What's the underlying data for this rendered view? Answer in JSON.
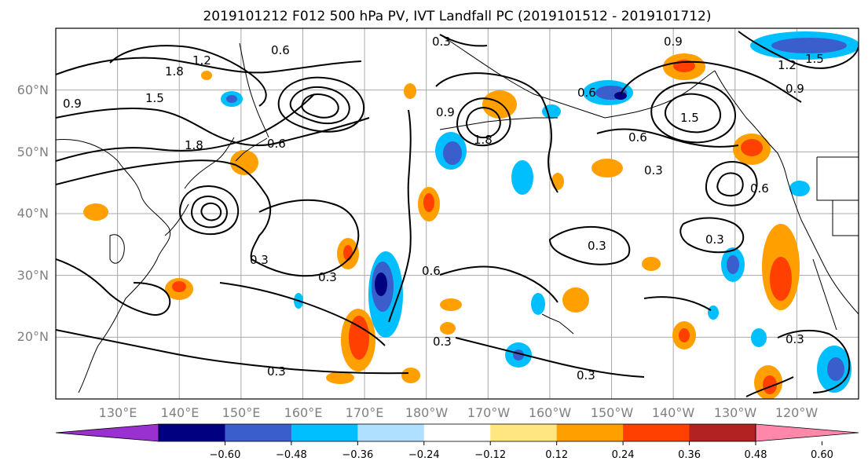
{
  "title": "2019101212 F012 500 hPa PV, IVT Landfall PC (2019101512 - 2019101712)",
  "lat_labels": [
    "60°N",
    "50°N",
    "40°N",
    "30°N",
    "20°N"
  ],
  "lon_labels": [
    "130°E",
    "140°E",
    "150°E",
    "160°E",
    "170°E",
    "180°W",
    "170°W",
    "160°W",
    "150°W",
    "140°W",
    "130°W",
    "120°W"
  ],
  "contour_labels": {
    "c1": "0.6",
    "c2": "1.2",
    "c3": "1.8",
    "c4": "1.5",
    "c5": "0.9",
    "c6": "0.3",
    "c7": "0.9",
    "c8": "1.8",
    "c9": "0.6",
    "c10": "0.9",
    "c11": "1.5",
    "c12": "1.2",
    "c13": "1.5",
    "c14": "0.9",
    "c15": "1.8",
    "c16": "0.3",
    "c17": "0.3",
    "c18": "0.6",
    "c19": "0.3",
    "c20": "0.3",
    "c21": "0.6",
    "c22": "0.3",
    "c23": "0.3",
    "c24": "0.3",
    "c25": "0.3",
    "c26": "0.3",
    "c27": "0.6",
    "c28": "0.6"
  },
  "colorbar": {
    "colors": [
      "#9b30d0",
      "#000080",
      "#3a5fcd",
      "#00bfff",
      "#b0e0ff",
      "#ffffff",
      "#ffe680",
      "#ffa000",
      "#ff4000",
      "#b22222",
      "#ff88aa"
    ],
    "tick_labels": [
      "−0.60",
      "−0.48",
      "−0.36",
      "−0.24",
      "−0.12",
      "0.12",
      "0.24",
      "0.36",
      "0.48",
      "0.60"
    ]
  },
  "chart_data": {
    "type": "heatmap",
    "title": "2019101212 F012 500 hPa PV, IVT Landfall PC (2019101512 - 2019101712)",
    "map_extent": {
      "lon_min": 120,
      "lon_max": 250,
      "lat_min": 10,
      "lat_max": 70
    },
    "grid": true,
    "contour_field": "500 hPa PV (black contours)",
    "contour_levels": [
      0.3,
      0.6,
      0.9,
      1.2,
      1.5,
      1.8
    ],
    "shaded_levels": [
      -0.6,
      -0.48,
      -0.36,
      -0.24,
      -0.12,
      0.12,
      0.24,
      0.36,
      0.48,
      0.6
    ],
    "colorbar_extend": "both"
  }
}
